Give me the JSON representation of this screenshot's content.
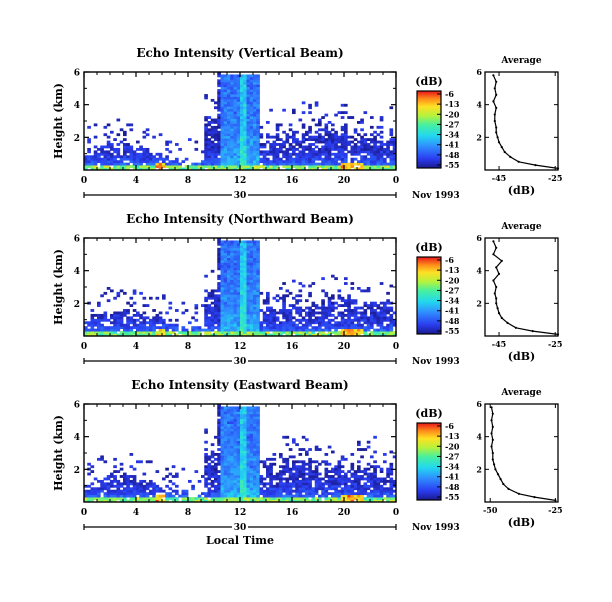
{
  "chart_data": [
    {
      "type": "heatmap",
      "title": "Echo Intensity (Vertical Beam)",
      "ylabel": "Height (km)",
      "xlabel": "",
      "xlim": [
        0,
        24
      ],
      "ylim": [
        0,
        6
      ],
      "x_ticks": [
        "0",
        "4",
        "8",
        "12",
        "16",
        "20",
        "0"
      ],
      "y_ticks": [
        "2",
        "4",
        "6"
      ],
      "date_label": "30",
      "date_suffix": "Nov 1993",
      "colorbar": {
        "unit": "(dB)",
        "ticks": [
          "-6",
          "-13",
          "-20",
          "-27",
          "-34",
          "-41",
          "-48",
          "-55"
        ],
        "range": [
          -55,
          -6
        ]
      },
      "profile": {
        "title": "Average",
        "xlabel": "(dB)",
        "x_ticks": [
          "-45",
          "-25"
        ],
        "y_ticks": [
          "2",
          "4",
          "6"
        ],
        "xlim": [
          -50,
          -24
        ],
        "heights": [
          0.1,
          0.3,
          0.5,
          0.8,
          1.1,
          1.4,
          1.7,
          2.0,
          2.3,
          2.6,
          3.0,
          3.4,
          3.8,
          4.2,
          4.6,
          5.0,
          5.4,
          5.8
        ],
        "values": [
          -24,
          -32,
          -38,
          -41,
          -43,
          -44,
          -45,
          -45.5,
          -46,
          -46,
          -46.5,
          -46.5,
          -46,
          -47,
          -46,
          -46.5,
          -46,
          -47
        ]
      }
    },
    {
      "type": "heatmap",
      "title": "Echo Intensity (Northward Beam)",
      "ylabel": "Height (km)",
      "xlabel": "",
      "xlim": [
        0,
        24
      ],
      "ylim": [
        0,
        6
      ],
      "x_ticks": [
        "0",
        "4",
        "8",
        "12",
        "16",
        "20",
        "0"
      ],
      "y_ticks": [
        "2",
        "4",
        "6"
      ],
      "date_label": "30",
      "date_suffix": "Nov 1993",
      "colorbar": {
        "unit": "(dB)",
        "ticks": [
          "-6",
          "-13",
          "-20",
          "-27",
          "-34",
          "-41",
          "-48",
          "-55"
        ],
        "range": [
          -55,
          -6
        ]
      },
      "profile": {
        "title": "Average",
        "xlabel": "(dB)",
        "x_ticks": [
          "-45",
          "-25"
        ],
        "y_ticks": [
          "2",
          "4",
          "6"
        ],
        "xlim": [
          -50,
          -24
        ],
        "heights": [
          0.1,
          0.3,
          0.5,
          0.8,
          1.1,
          1.4,
          1.7,
          2.0,
          2.3,
          2.6,
          3.0,
          3.4,
          3.8,
          4.2,
          4.6,
          5.0,
          5.4,
          5.8
        ],
        "values": [
          -24,
          -33,
          -39,
          -42,
          -44,
          -45,
          -45.5,
          -46,
          -46,
          -46.5,
          -46,
          -47,
          -45,
          -46,
          -44,
          -47,
          -46,
          -47
        ]
      }
    },
    {
      "type": "heatmap",
      "title": "Echo Intensity (Eastward Beam)",
      "ylabel": "Height (km)",
      "xlabel": "Local Time",
      "xlim": [
        0,
        24
      ],
      "ylim": [
        0,
        6
      ],
      "x_ticks": [
        "0",
        "4",
        "8",
        "12",
        "16",
        "20",
        "0"
      ],
      "y_ticks": [
        "2",
        "4",
        "6"
      ],
      "date_label": "30",
      "date_suffix": "Nov 1993",
      "colorbar": {
        "unit": "(dB)",
        "ticks": [
          "-6",
          "-13",
          "-20",
          "-27",
          "-34",
          "-41",
          "-48",
          "-55"
        ],
        "range": [
          -55,
          -6
        ]
      },
      "profile": {
        "title": "Average",
        "xlabel": "(dB)",
        "x_ticks": [
          "-50",
          "-25"
        ],
        "y_ticks": [
          "2",
          "4",
          "6"
        ],
        "xlim": [
          -52,
          -24
        ],
        "heights": [
          0.1,
          0.3,
          0.5,
          0.8,
          1.1,
          1.4,
          1.7,
          2.0,
          2.3,
          2.6,
          3.0,
          3.4,
          3.8,
          4.2,
          4.6,
          5.0,
          5.4,
          5.8
        ],
        "values": [
          -25,
          -33,
          -39,
          -43,
          -45,
          -46,
          -47,
          -48,
          -48.5,
          -49,
          -49,
          -49.5,
          -49,
          -49.5,
          -49,
          -49.5,
          -49,
          -49.5
        ]
      }
    }
  ]
}
